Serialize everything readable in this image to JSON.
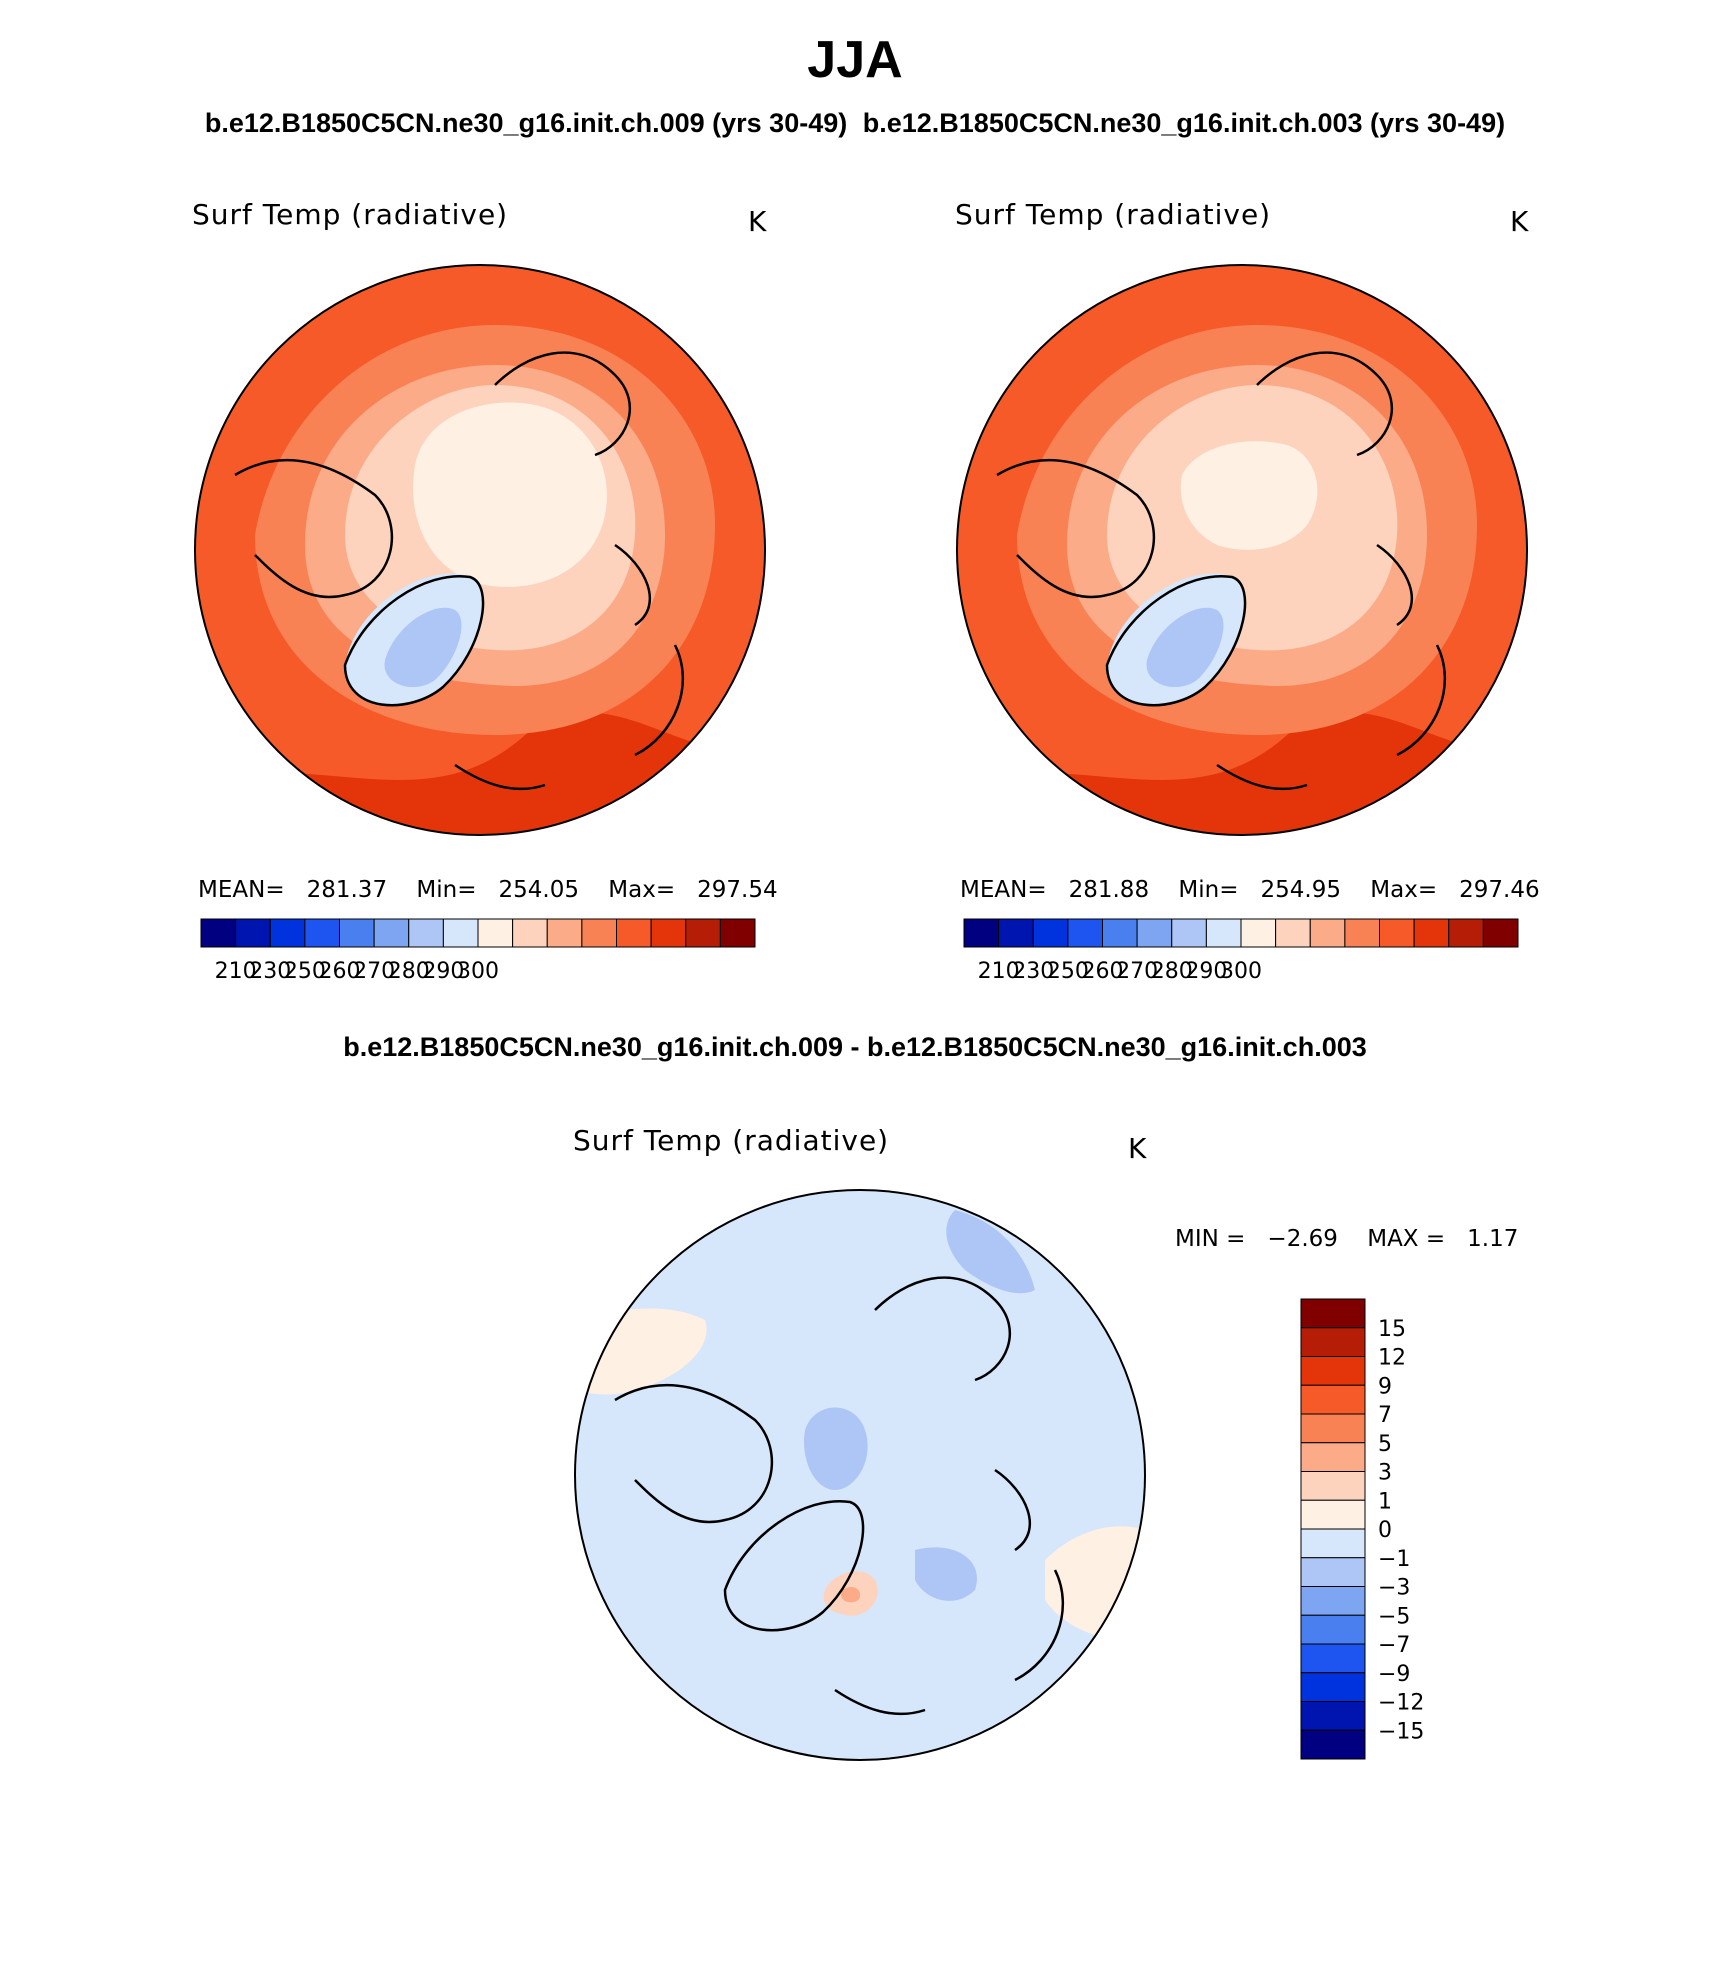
{
  "header": {
    "title": "JJA",
    "run_left": "b.e12.B1850C5CN.ne30_g16.init.ch.009 (yrs 30-49)",
    "run_right": "b.e12.B1850C5CN.ne30_g16.init.ch.003 (yrs 30-49)",
    "diff_title": "b.e12.B1850C5CN.ne30_g16.init.ch.009 - b.e12.B1850C5CN.ne30_g16.init.ch.003"
  },
  "chart_data": [
    {
      "type": "heatmap",
      "projection": "north-polar-stereographic",
      "title": "Surf Temp (radiative)",
      "units": "K",
      "stats": {
        "mean_label": "MEAN=",
        "mean": "281.37",
        "min_label": "Min=",
        "min": "254.05",
        "max_label": "Max=",
        "max": "297.54"
      },
      "colorbar": {
        "orientation": "horizontal",
        "levels": [
          "210",
          "230",
          "250",
          "260",
          "270",
          "280",
          "290",
          "300"
        ],
        "colors": [
          "#000080",
          "#0015b0",
          "#0033dd",
          "#1e55f0",
          "#4a7ff0",
          "#7ea5f2",
          "#aec6f6",
          "#d6e6fb",
          "#fff0e4",
          "#fdd3bd",
          "#fcab88",
          "#f98255",
          "#f65a28",
          "#e33509",
          "#b51d07",
          "#800000"
        ]
      }
    },
    {
      "type": "heatmap",
      "projection": "north-polar-stereographic",
      "title": "Surf Temp (radiative)",
      "units": "K",
      "stats": {
        "mean_label": "MEAN=",
        "mean": "281.88",
        "min_label": "Min=",
        "min": "254.95",
        "max_label": "Max=",
        "max": "297.46"
      },
      "colorbar": {
        "orientation": "horizontal",
        "levels": [
          "210",
          "230",
          "250",
          "260",
          "270",
          "280",
          "290",
          "300"
        ],
        "colors": [
          "#000080",
          "#0015b0",
          "#0033dd",
          "#1e55f0",
          "#4a7ff0",
          "#7ea5f2",
          "#aec6f6",
          "#d6e6fb",
          "#fff0e4",
          "#fdd3bd",
          "#fcab88",
          "#f98255",
          "#f65a28",
          "#e33509",
          "#b51d07",
          "#800000"
        ]
      }
    },
    {
      "type": "heatmap",
      "projection": "north-polar-stereographic",
      "title": "Surf Temp (radiative)",
      "units": "K",
      "stats": {
        "min_label": "MIN =",
        "min": "−2.69",
        "max_label": "MAX =",
        "max": "1.17"
      },
      "colorbar": {
        "orientation": "vertical",
        "levels": [
          "15",
          "12",
          "9",
          "7",
          "5",
          "3",
          "1",
          "0",
          "−1",
          "−3",
          "−5",
          "−7",
          "−9",
          "−12",
          "−15"
        ],
        "colors": [
          "#800000",
          "#b51d07",
          "#e33509",
          "#f65a28",
          "#f98255",
          "#fcab88",
          "#fdd3bd",
          "#fff0e4",
          "#d6e6fb",
          "#aec6f6",
          "#7ea5f2",
          "#4a7ff0",
          "#1e55f0",
          "#0033dd",
          "#0015b0",
          "#000080"
        ]
      }
    }
  ]
}
